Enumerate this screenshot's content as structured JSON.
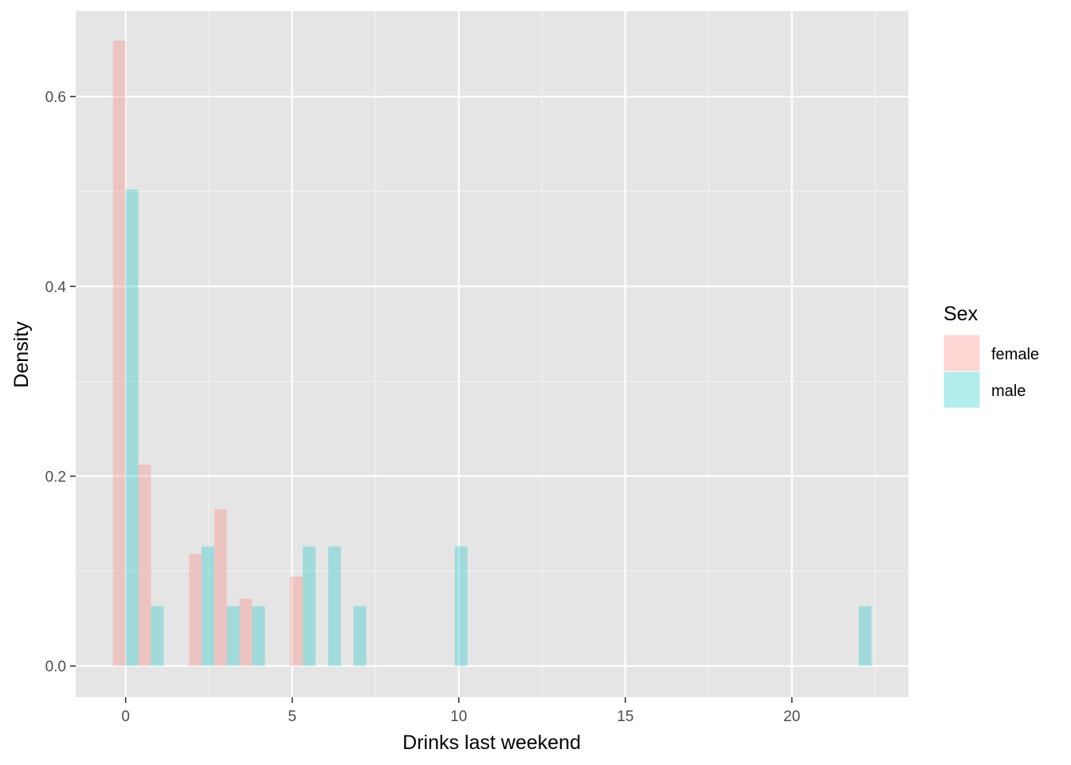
{
  "chart_data": {
    "type": "bar",
    "xlabel": "Drinks last weekend",
    "ylabel": "Density",
    "xlim": [
      -1.5,
      23.5
    ],
    "ylim": [
      -0.033,
      0.69
    ],
    "x_ticks": [
      0,
      5,
      10,
      15,
      20
    ],
    "x_tick_labels": [
      "0",
      "5",
      "10",
      "15",
      "20"
    ],
    "y_ticks": [
      0.0,
      0.2,
      0.4,
      0.6
    ],
    "y_tick_labels": [
      "0.0",
      "0.2",
      "0.4",
      "0.6"
    ],
    "bar_width": 0.38,
    "grid": true,
    "legend": {
      "title": "Sex",
      "position": "right"
    },
    "series": [
      {
        "name": "female",
        "color": "#F8766D",
        "points": [
          {
            "x": -0.19,
            "y": 0.659
          },
          {
            "x": 0.57,
            "y": 0.212
          },
          {
            "x": 2.09,
            "y": 0.118
          },
          {
            "x": 2.85,
            "y": 0.165
          },
          {
            "x": 3.61,
            "y": 0.071
          },
          {
            "x": 5.13,
            "y": 0.094
          }
        ]
      },
      {
        "name": "male",
        "color": "#00BFC4",
        "points": [
          {
            "x": 0.19,
            "y": 0.502
          },
          {
            "x": 0.95,
            "y": 0.063
          },
          {
            "x": 2.47,
            "y": 0.126
          },
          {
            "x": 3.23,
            "y": 0.063
          },
          {
            "x": 3.99,
            "y": 0.063
          },
          {
            "x": 5.51,
            "y": 0.126
          },
          {
            "x": 6.27,
            "y": 0.126
          },
          {
            "x": 7.03,
            "y": 0.063
          },
          {
            "x": 10.07,
            "y": 0.126
          },
          {
            "x": 22.2,
            "y": 0.063
          }
        ]
      }
    ]
  },
  "colors": {
    "panel_background": "#E5E5E5",
    "grid_major": "#FFFFFF",
    "grid_minor": "#F2F2F2",
    "female_fill": "#F8766D",
    "male_fill": "#00BFC4"
  }
}
